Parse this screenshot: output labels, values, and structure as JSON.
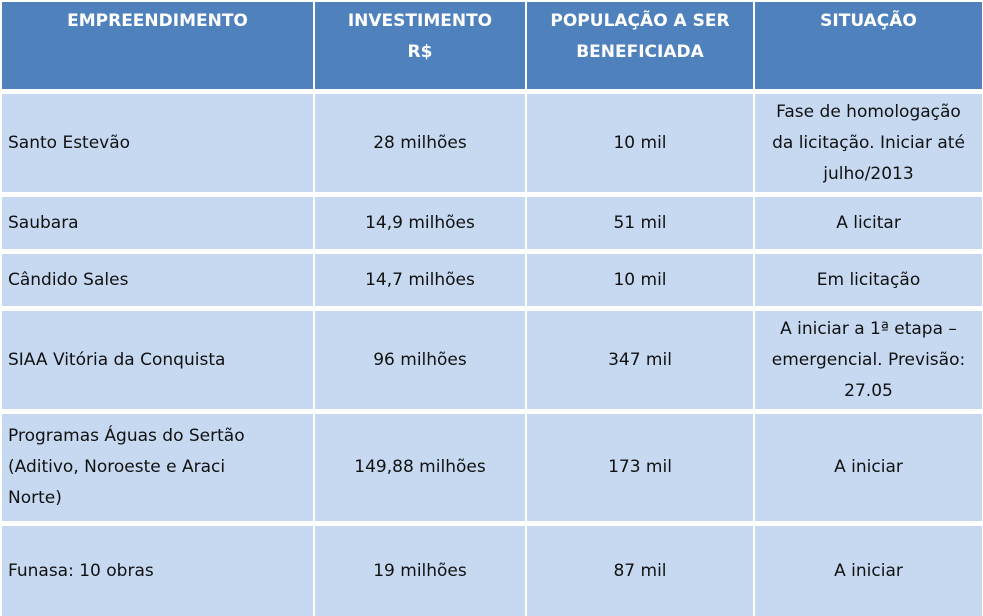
{
  "table": {
    "headers": [
      "EMPREENDIMENTO",
      "INVESTIMENTO\nR$",
      "POPULAÇÃO A SER\nBENEFICIADA",
      "SITUAÇÃO"
    ],
    "rows": [
      {
        "empreendimento": "Santo Estevão",
        "investimento": "28 milhões",
        "populacao": "10 mil",
        "situacao": "Fase de homologação\nda licitação. Iniciar até\njulho/2013"
      },
      {
        "empreendimento": "Saubara",
        "investimento": "14,9 milhões",
        "populacao": "51 mil",
        "situacao": "A licitar"
      },
      {
        "empreendimento": "Cândido Sales",
        "investimento": "14,7 milhões",
        "populacao": "10 mil",
        "situacao": "Em licitação"
      },
      {
        "empreendimento": "SIAA Vitória da Conquista",
        "investimento": "96 milhões",
        "populacao": "347 mil",
        "situacao": "A iniciar a 1ª etapa –\nemergencial. Previsão:\n27.05"
      },
      {
        "empreendimento": "Programas Águas do Sertão\n(Aditivo, Noroeste e Araci\nNorte)",
        "investimento": "149,88 milhões",
        "populacao": "173 mil",
        "situacao": "A iniciar"
      },
      {
        "empreendimento": "Funasa: 10 obras",
        "investimento": "19 milhões",
        "populacao": "87 mil",
        "situacao": "A iniciar"
      }
    ]
  },
  "colors": {
    "header_bg": "#4f81bd",
    "header_text": "#ffffff",
    "row_bg": "#c6d9f1",
    "row_text": "#111111",
    "separator": "#ffffff"
  }
}
